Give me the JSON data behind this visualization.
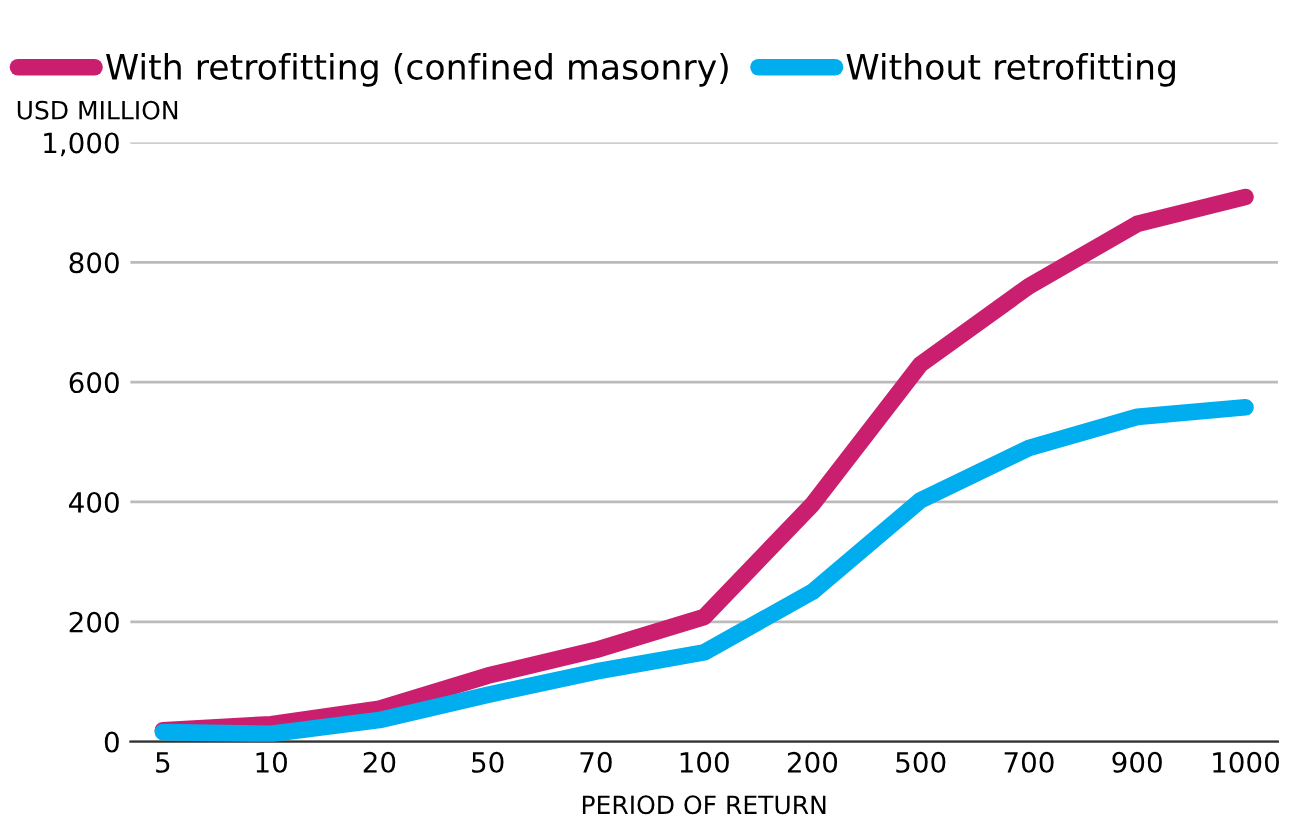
{
  "chart_data": {
    "type": "line",
    "xlabel": "PERIOD OF RETURN",
    "ylabel": "USD MILLION",
    "categories": [
      "5",
      "10",
      "20",
      "50",
      "70",
      "100",
      "200",
      "500",
      "700",
      "900",
      "1000"
    ],
    "series": [
      {
        "name": "With retrofitting (confined masonry)",
        "color": "#c91f6e",
        "values": [
          19,
          29,
          55,
          110,
          153,
          208,
          396,
          630,
          760,
          864,
          909
        ]
      },
      {
        "name": "Without retrofitting",
        "color": "#00aeef",
        "values": [
          16,
          13,
          36,
          78,
          117,
          149,
          250,
          403,
          490,
          542,
          558
        ]
      }
    ],
    "ylim": [
      0,
      1000
    ],
    "yticks": [
      0,
      200,
      400,
      600,
      800,
      {
        "value": 1000,
        "label": "1,000"
      }
    ],
    "grid": "y",
    "legend": "top",
    "marker": "none",
    "line_style": "solid"
  }
}
